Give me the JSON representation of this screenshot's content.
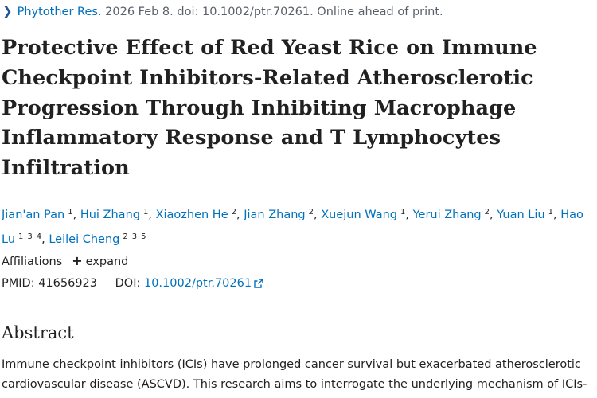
{
  "citation": {
    "journal": "Phytother Res.",
    "details": "2026 Feb 8. doi: 10.1002/ptr.70261. Online ahead of print."
  },
  "title": "Protective Effect of Red Yeast Rice on Immune Checkpoint Inhibitors-Related Atherosclerotic Progression Through Inhibiting Macrophage Inflammatory Response and T Lymphocytes Infiltration",
  "authors": [
    {
      "name": "Jian'an Pan",
      "affs": [
        "1"
      ]
    },
    {
      "name": "Hui Zhang",
      "affs": [
        "1"
      ]
    },
    {
      "name": "Xiaozhen He",
      "affs": [
        "2"
      ]
    },
    {
      "name": "Jian Zhang",
      "affs": [
        "2"
      ]
    },
    {
      "name": "Xuejun Wang",
      "affs": [
        "1"
      ]
    },
    {
      "name": "Yerui Zhang",
      "affs": [
        "2"
      ]
    },
    {
      "name": "Yuan Liu",
      "affs": [
        "1"
      ]
    },
    {
      "name": "Hao Lu",
      "affs": [
        "1",
        "3",
        "4"
      ]
    },
    {
      "name": "Leilei Cheng",
      "affs": [
        "2",
        "3",
        "5"
      ]
    }
  ],
  "affiliations": {
    "label": "Affiliations",
    "expand_label": "expand"
  },
  "identifiers": {
    "pmid_label": "PMID:",
    "pmid": "41656923",
    "doi_label": "DOI:",
    "doi": "10.1002/ptr.70261"
  },
  "abstract": {
    "heading": "Abstract",
    "text": "Immune checkpoint inhibitors (ICIs) have prolonged cancer survival but exacerbated atherosclerotic cardiovascular disease (ASCVD). This research aims to interrogate the underlying mechanism of ICIs-"
  },
  "icons": {
    "journal_chevron": "chevron-right-icon",
    "expand": "plus-icon",
    "doi_link": "external-link-icon"
  },
  "colors": {
    "link": "#0071bc",
    "text": "#212121",
    "muted": "#5b616b"
  }
}
